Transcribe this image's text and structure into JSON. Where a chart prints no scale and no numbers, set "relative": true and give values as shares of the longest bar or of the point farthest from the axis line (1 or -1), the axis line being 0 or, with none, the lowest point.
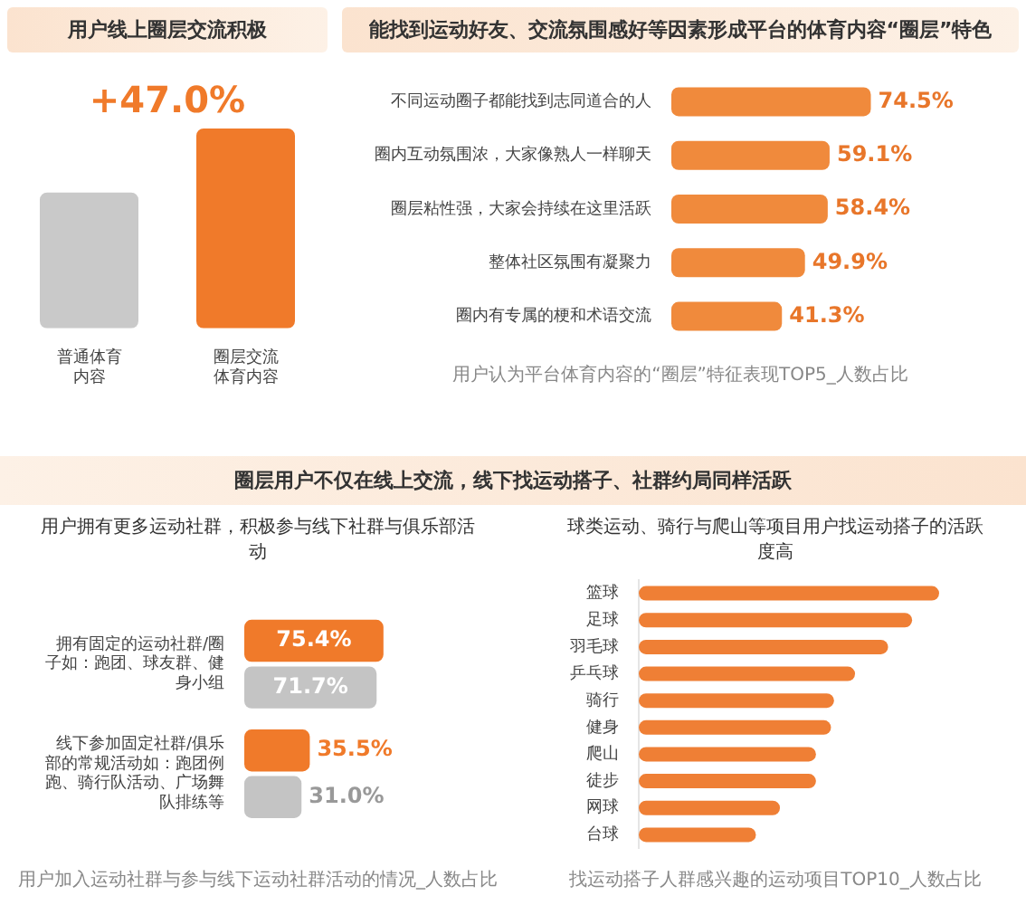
{
  "chart_data": [
    {
      "type": "bar",
      "title": "用户线上圈层交流积极",
      "categories": [
        "普通体育内容",
        "圈层交流体育内容"
      ],
      "relative": true,
      "series": [
        {
          "values": [
            0.68,
            1
          ],
          "colors": [
            "#c9c9c9",
            "#f07a2a"
          ]
        }
      ],
      "annotations": [
        "+47.0%"
      ]
    },
    {
      "type": "bar",
      "orientation": "horizontal",
      "title": "能找到运动好友、交流氛围感好等因素形成平台的体育内容“圈层”特色",
      "categories": [
        "不同运动圈子都能找到志同道合的人",
        "圈内互动氛围浓，大家像熟人一样聊天",
        "圈层粘性强，大家会持续在这里活跃",
        "整体社区氛围有凝聚力",
        "圈内有专属的梗和术语交流"
      ],
      "tick_labels": "y",
      "series": [
        {
          "color": "#f08a3c",
          "values": [
            74.5,
            59.1,
            58.4,
            49.9,
            41.3
          ],
          "value_labels": [
            "74.5%",
            "59.1%",
            "58.4%",
            "49.9%",
            "41.3%"
          ]
        }
      ],
      "annotations": [
        "用户认为平台体育内容的“圈层”特征表现TOP5_人数占比"
      ]
    },
    {
      "type": "bar",
      "orientation": "horizontal",
      "subtitle": "圈层用户不仅在线上交流，线下找运动搭子、社群约局同样活跃",
      "title": "用户拥有更多运动社群，积极参与线下社群与俱乐部活动",
      "categories": [
        "拥有固定的运动社群/圈子如：跑团、球友群、健身小组",
        "线下参加固定社群/俱乐部的常规活动如：跑团例跑、骑行队活动、广场舞队排练等"
      ],
      "tick_labels": "y",
      "series": [
        {
          "color": "#f07a2a",
          "values": [
            75.4,
            35.5
          ],
          "value_labels": [
            "75.4%",
            "35.5%"
          ]
        },
        {
          "color": "#c4c4c4",
          "values": [
            71.7,
            31.0
          ],
          "value_labels": [
            "71.7%",
            "31.0%"
          ]
        }
      ],
      "annotations": [
        "用户加入运动社群与参与线下运动社群活动的情况_人数占比"
      ]
    },
    {
      "type": "bar",
      "orientation": "horizontal",
      "relative": true,
      "title": "球类运动、骑行与爬山等项目用户找运动搭子的活跃度高",
      "categories": [
        "篮球",
        "足球",
        "羽毛球",
        "乒乓球",
        "骑行",
        "健身",
        "爬山",
        "徒步",
        "网球",
        "台球"
      ],
      "series": [
        {
          "color": "#ef7f35",
          "values": [
            1,
            0.91,
            0.83,
            0.72,
            0.65,
            0.64,
            0.59,
            0.59,
            0.47,
            0.39
          ]
        }
      ],
      "annotations": [
        "找运动搭子人群感兴趣的运动项目TOP10_人数占比"
      ]
    }
  ]
}
